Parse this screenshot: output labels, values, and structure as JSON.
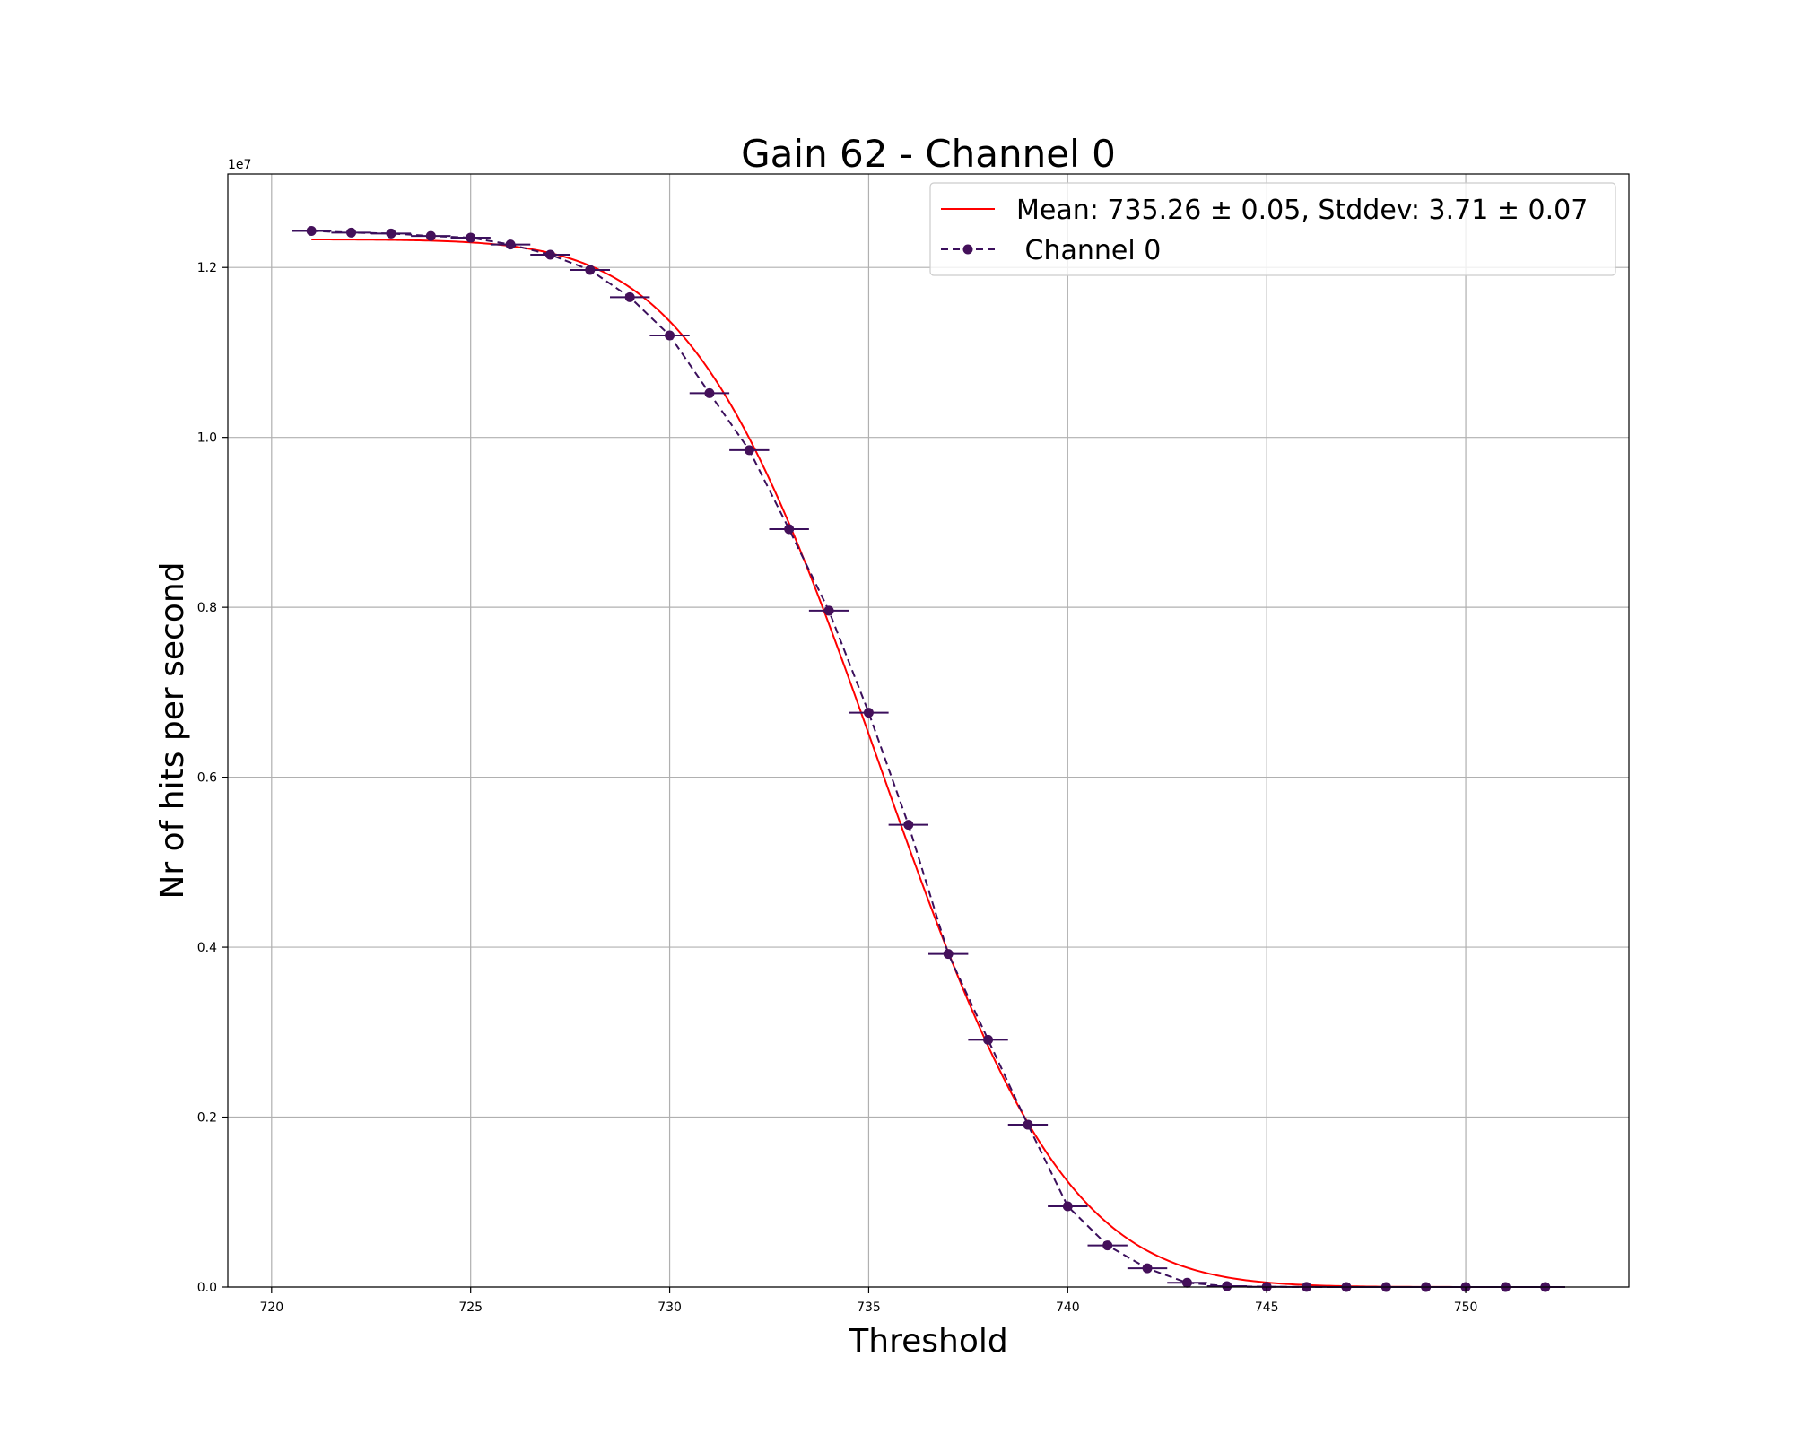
{
  "chart_data": {
    "type": "scatter",
    "title": "Gain 62 - Channel 0",
    "xlabel": "Threshold",
    "ylabel": "Nr of hits per second",
    "y_offset_label": "1e7",
    "xlim": [
      718.9,
      754.1
    ],
    "ylim": [
      0,
      13100000
    ],
    "xticks": [
      720,
      725,
      730,
      735,
      740,
      745,
      750
    ],
    "xtick_labels": [
      "720",
      "725",
      "730",
      "735",
      "740",
      "745",
      "750"
    ],
    "yticks": [
      0,
      2000000,
      4000000,
      6000000,
      8000000,
      10000000,
      12000000
    ],
    "ytick_labels": [
      "0.0",
      "0.2",
      "0.4",
      "0.6",
      "0.8",
      "1.0",
      "1.2"
    ],
    "grid": true,
    "legend_position": "top-right",
    "series": [
      {
        "name": "Mean: 735.26 ± 0.05, Stddev: 3.71 ± 0.07",
        "kind": "fit-line",
        "color": "#ff0000",
        "line_style": "solid",
        "fit_model": "erfc",
        "mean": 735.26,
        "stddev": 3.71,
        "amplitude": 12330000,
        "x_range": [
          721,
          752
        ]
      },
      {
        "name": " Channel 0",
        "kind": "data-with-xerr",
        "color": "#3b0f5c",
        "marker_color": "#44105a",
        "line_style": "dashed",
        "xerr": 0.5,
        "x": [
          721,
          722,
          723,
          724,
          725,
          726,
          727,
          728,
          729,
          730,
          731,
          732,
          733,
          734,
          735,
          736,
          737,
          738,
          739,
          740,
          741,
          742,
          743,
          744,
          745,
          746,
          747,
          748,
          749,
          750,
          751,
          752
        ],
        "y": [
          12430000,
          12410000,
          12400000,
          12370000,
          12350000,
          12270000,
          12150000,
          11970000,
          11650000,
          11200000,
          10520000,
          9850000,
          8920000,
          7960000,
          6760000,
          5440000,
          3920000,
          2910000,
          1910000,
          950000,
          490000,
          220000,
          50000,
          10000,
          3000,
          1000,
          0,
          0,
          0,
          0,
          0,
          0
        ]
      }
    ]
  }
}
